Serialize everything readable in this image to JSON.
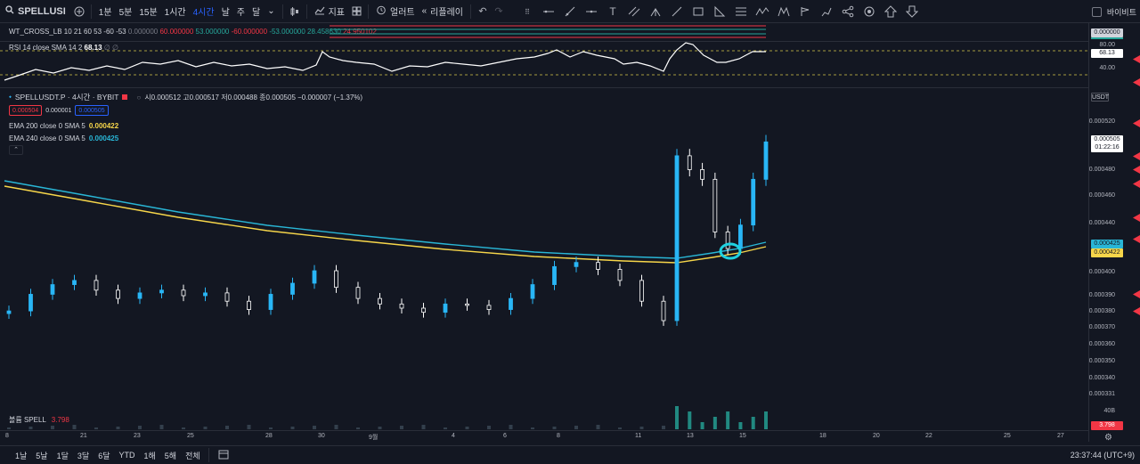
{
  "toolbar": {
    "symbol": "SPELLUSI",
    "intervals": [
      "1분",
      "5분",
      "15분",
      "1시간",
      "4시간",
      "날",
      "주",
      "달"
    ],
    "active_interval": "4시간",
    "indicators_label": "지표",
    "alert_label": "얼러트",
    "replay_label": "리플레이",
    "right_label": "바이비트"
  },
  "wt_pane": {
    "label": "WT_CROSS_LB 10 21 60 53 -60 -53",
    "values": [
      "0.000000",
      "60.000000",
      "53.000000",
      "-60.000000",
      "-53.000000",
      "28.458630",
      "24.950102"
    ],
    "axis_value": "0.000000"
  },
  "rsi_pane": {
    "label": "RSI 14 close SMA 14 2",
    "value": "68.13",
    "axis_labels": [
      "80.00",
      "40.00"
    ],
    "axis_tag": "68.13"
  },
  "main": {
    "title": "SPELLUSDT.P · 4시간 · BYBIT",
    "ohlc": "시0.000512 고0.000517 저0.000488 종0.000505 −0.000007 (−1.37%)",
    "bid": "0.000504",
    "spread": "0.000001",
    "ask": "0.000505",
    "ema1_label": "EMA 200 close 0 SMA 5",
    "ema1_value": "0.000422",
    "ema2_label": "EMA 240 close 0 SMA 5",
    "ema2_value": "0.000425",
    "currency": "USDT",
    "price_labels": [
      "0.000520",
      "0.000480",
      "0.000460",
      "0.000440",
      "0.000400",
      "0.000390",
      "0.000380",
      "0.000370",
      "0.000360",
      "0.000350",
      "0.000340",
      "0.000331"
    ],
    "last_price": "0.000505",
    "countdown": "01:22:16",
    "ema2_tag": "0.000425",
    "ema1_tag": "0.000422"
  },
  "volume_pane": {
    "label": "볼륨 SPELL",
    "value": "3.798",
    "axis_top": "40B",
    "axis_tag": "3.798"
  },
  "time_axis": [
    "8",
    "21",
    "23",
    "25",
    "28",
    "30",
    "9월",
    "4",
    "6",
    "8",
    "11",
    "13",
    "15",
    "18",
    "20",
    "22",
    "25",
    "27"
  ],
  "bottom": {
    "ranges": [
      "1날",
      "5날",
      "1달",
      "3달",
      "6달",
      "YTD",
      "1해",
      "5해",
      "전체"
    ],
    "clock": "23:37:44 (UTC+9)"
  },
  "colors": {
    "up": "#26a69a",
    "candle_up": "#29b6f6",
    "candle_down": "#ffffff",
    "ema200": "#f7d64a",
    "ema240": "#29b6d6",
    "annotation": "#1fd1e0",
    "red": "#f23645"
  },
  "chart_data": {
    "type": "candlestick",
    "title": "SPELLUSDT.P · 4시간 · BYBIT",
    "y_range": [
      0.00033,
      0.00053
    ],
    "ema200": [
      0.000468,
      0.000465,
      0.000462,
      0.000458,
      0.000452,
      0.000447,
      0.000442,
      0.000436,
      0.000431,
      0.000427,
      0.000424,
      0.000421,
      0.000419,
      0.000418,
      0.000418,
      0.000419,
      0.000422
    ],
    "ema240": [
      0.000471,
      0.000468,
      0.000465,
      0.000461,
      0.000455,
      0.00045,
      0.000445,
      0.000439,
      0.000434,
      0.00043,
      0.000427,
      0.000424,
      0.000423,
      0.000421,
      0.000421,
      0.000422,
      0.000425
    ],
    "closes": [
      0.000383,
      0.000395,
      0.000402,
      0.000405,
      0.000398,
      0.000392,
      0.000396,
      0.000398,
      0.000394,
      0.000396,
      0.00039,
      0.000384,
      0.000395,
      0.000403,
      0.000412,
      0.0004,
      0.000392,
      0.000388,
      0.000385,
      0.000382,
      0.000388,
      0.000387,
      0.000384,
      0.000392,
      0.000402,
      0.000415,
      0.000418,
      0.000413,
      0.000405,
      0.00039,
      0.000376,
      0.000495,
      0.000485,
      0.000478,
      0.00044,
      0.000428,
      0.000445,
      0.000478,
      0.000505
    ]
  }
}
